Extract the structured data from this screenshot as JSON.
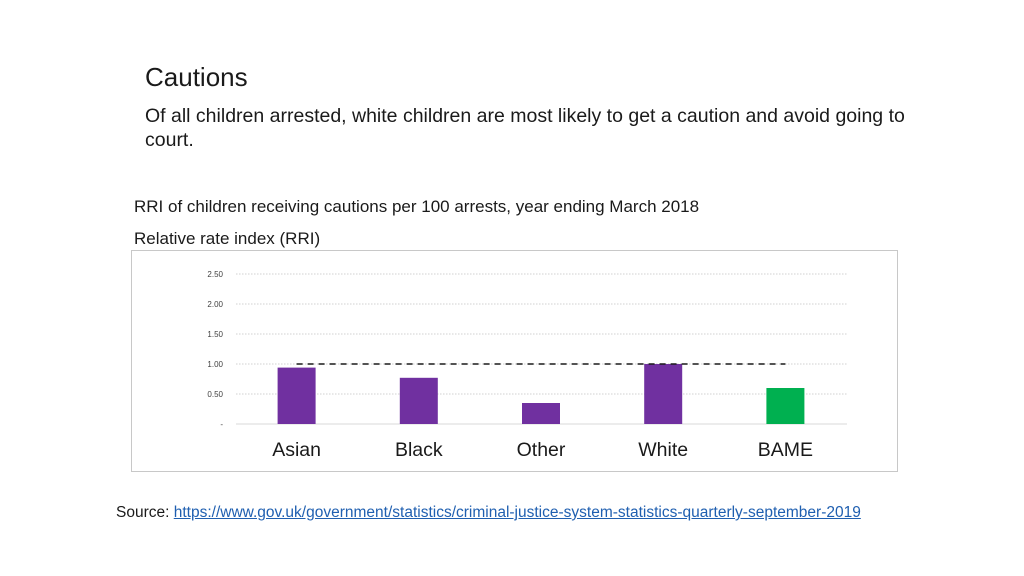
{
  "header": {
    "title": "Cautions",
    "subtitle": "Of all children arrested, white children are most likely to get a caution and avoid going to court."
  },
  "chart_data": {
    "type": "bar",
    "title": "RRI of children receiving cautions per 100 arrests, year ending March 2018",
    "ylabel": "Relative rate index (RRI)",
    "xlabel": "",
    "categories": [
      "Asian",
      "Black",
      "Other",
      "White",
      "BAME"
    ],
    "values": [
      0.94,
      0.77,
      0.35,
      1.0,
      0.6
    ],
    "bar_colors": [
      "#7030a0",
      "#7030a0",
      "#7030a0",
      "#7030a0",
      "#00b050"
    ],
    "ylim": [
      0,
      2.5
    ],
    "y_ticks": [
      0,
      0.5,
      1.0,
      1.5,
      2.0,
      2.5
    ],
    "y_tick_labels": [
      "-",
      "0.50",
      "1.00",
      "1.50",
      "2.00",
      "2.50"
    ],
    "reference_line": 1.0,
    "grid": true,
    "legend": "none"
  },
  "source": {
    "label": "Source: ",
    "link_text": "https://www.gov.uk/government/statistics/criminal-justice-system-statistics-quarterly-september-2019"
  }
}
